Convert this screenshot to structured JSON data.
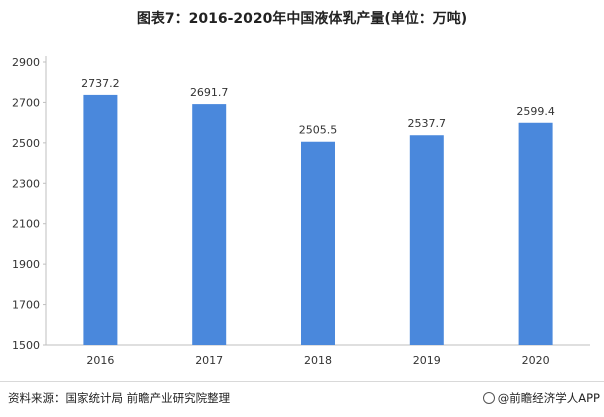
{
  "title": "图表7：2016-2020年中国液体乳产量(单位：万吨)",
  "source": "资料来源：国家统计局 前瞻产业研究院整理",
  "brand": "@前瞻经济学人APP",
  "colors": {
    "bar": "#4a88dc",
    "axis": "#bfbfbf",
    "grid": "#e6e6e6",
    "text": "#333333"
  },
  "chart_data": {
    "type": "bar",
    "title": "图表7：2016-2020年中国液体乳产量(单位：万吨)",
    "xlabel": "",
    "ylabel": "",
    "categories": [
      "2016",
      "2017",
      "2018",
      "2019",
      "2020"
    ],
    "values": [
      2737.2,
      2691.7,
      2505.5,
      2537.7,
      2599.4
    ],
    "data_labels": [
      "2737.2",
      "2691.7",
      "2505.5",
      "2537.7",
      "2599.4"
    ],
    "ylim": [
      1500,
      2900
    ],
    "yticks": [
      "1500",
      "1700",
      "1900",
      "2100",
      "2300",
      "2500",
      "2700",
      "2900"
    ],
    "grid": false,
    "legend": "none"
  }
}
